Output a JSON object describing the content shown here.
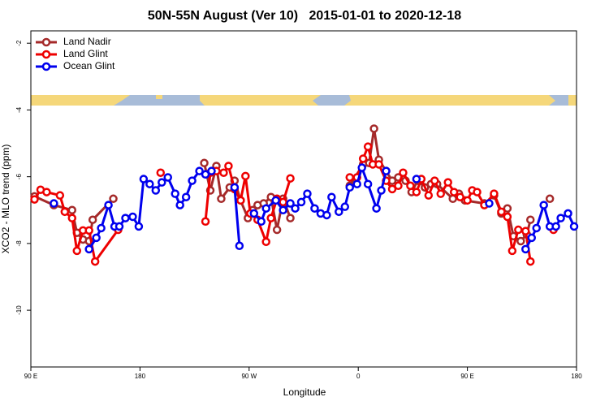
{
  "chart_data": {
    "type": "line",
    "title": "50N-55N August (Ver 10)   2015-01-01 to 2020-12-18",
    "x_label": "Longitude",
    "y_label": "XCO2 - MLO trend (ppm)",
    "xlim": [
      90,
      540
    ],
    "ylim": [
      -11.7,
      -1.63
    ],
    "xticks": [
      {
        "value": 90,
        "label": "90 E"
      },
      180,
      {
        "value": 270,
        "label": "90 W"
      },
      {
        "value": 360,
        "label": "0"
      },
      {
        "value": 450,
        "label": "90 E"
      },
      {
        "value": 540,
        "label": "180"
      }
    ],
    "yticks": [
      -2,
      -4,
      -6,
      -8,
      -10
    ],
    "legend": "upper left",
    "series": [
      {
        "name": "Land Nadir",
        "color": "#a52a2a",
        "x": [
          93,
          109,
          124,
          128,
          133,
          138,
          141,
          158,
          null,
          233,
          238,
          243,
          247,
          254,
          258,
          263,
          269,
          273,
          277,
          282,
          288,
          293,
          298,
          304,
          null,
          353,
          364,
          369,
          373,
          377,
          383,
          388,
          393,
          399,
          404,
          409,
          415,
          420,
          425,
          438,
          443,
          448,
          464,
          472,
          478,
          483,
          488,
          494,
          499,
          502,
          null,
          518
        ],
        "values": [
          -6.59,
          -6.85,
          -7.0,
          -7.68,
          -7.88,
          -7.93,
          -7.29,
          -6.66,
          null,
          -5.59,
          -6.41,
          -5.68,
          -6.66,
          -6.32,
          -6.12,
          -6.71,
          -7.24,
          -7.0,
          -6.85,
          -6.8,
          -6.61,
          -7.59,
          -6.66,
          -7.24,
          null,
          -6.27,
          -5.63,
          -5.59,
          -4.56,
          -5.49,
          -5.83,
          -6.12,
          -6.02,
          -6.12,
          -6.46,
          -6.12,
          -6.32,
          -6.22,
          -6.22,
          -6.66,
          -6.51,
          -6.71,
          -6.8,
          -6.56,
          -7.1,
          -6.95,
          -7.78,
          -7.93,
          -7.73,
          -7.29,
          null,
          -6.66
        ]
      },
      {
        "name": "Land Glint",
        "color": "#ee0000",
        "x": [
          93,
          98,
          103,
          114,
          118,
          124,
          128,
          133,
          138,
          143,
          162,
          null,
          197,
          null,
          234,
          238,
          243,
          249,
          253,
          258,
          263,
          267,
          271,
          277,
          284,
          288,
          293,
          298,
          304,
          null,
          353,
          359,
          364,
          368,
          372,
          377,
          383,
          388,
          393,
          397,
          403,
          408,
          412,
          418,
          423,
          428,
          434,
          439,
          444,
          450,
          454,
          458,
          464,
          472,
          478,
          483,
          487,
          492,
          498,
          502,
          null,
          521
        ],
        "values": [
          -6.68,
          -6.39,
          -6.46,
          -6.56,
          -7.05,
          -7.24,
          -8.22,
          -7.61,
          -7.61,
          -8.54,
          -7.59,
          null,
          -5.88,
          null,
          -7.34,
          -5.88,
          -5.83,
          -5.88,
          -5.68,
          -6.37,
          -6.71,
          -5.98,
          -7.1,
          -7.29,
          -7.95,
          -7.24,
          -6.66,
          -6.76,
          -6.05,
          null,
          -6.02,
          -6.02,
          -5.46,
          -5.1,
          -5.63,
          -5.63,
          -6.12,
          -6.37,
          -6.27,
          -5.88,
          -6.27,
          -6.46,
          -6.07,
          -6.56,
          -6.12,
          -6.51,
          -6.17,
          -6.46,
          -6.61,
          -6.71,
          -6.41,
          -6.46,
          -6.85,
          -6.51,
          -7.05,
          -7.2,
          -8.22,
          -7.59,
          -7.63,
          -8.54,
          null,
          -7.59
        ]
      },
      {
        "name": "Ocean Glint",
        "color": "#0000ee",
        "x": [
          109,
          null,
          138,
          144,
          148,
          154,
          159,
          163,
          168,
          174,
          179,
          183,
          188,
          193,
          198,
          203,
          209,
          213,
          218,
          223,
          229,
          234,
          239,
          null,
          258,
          262,
          null,
          274,
          280,
          284,
          292,
          298,
          304,
          308,
          313,
          318,
          324,
          329,
          334,
          338,
          344,
          349,
          353,
          359,
          363,
          368,
          375,
          379,
          383,
          null,
          408,
          null,
          468,
          null,
          498,
          503,
          507,
          513,
          518,
          523,
          527,
          533,
          538
        ],
        "values": [
          -6.8,
          null,
          -8.17,
          -7.83,
          -7.54,
          -6.85,
          -7.49,
          -7.49,
          -7.24,
          -7.2,
          -7.49,
          -6.07,
          -6.22,
          -6.41,
          -6.17,
          -6.02,
          -6.51,
          -6.85,
          -6.61,
          -6.12,
          -5.83,
          -5.93,
          -5.83,
          null,
          -6.32,
          -8.07,
          null,
          -7.1,
          -7.34,
          -6.95,
          -6.71,
          -7.0,
          -6.8,
          -6.95,
          -6.76,
          -6.51,
          -6.95,
          -7.1,
          -7.15,
          -6.61,
          -7.05,
          -6.9,
          -6.32,
          -6.22,
          -5.73,
          -6.22,
          -6.95,
          -6.41,
          -5.83,
          null,
          -6.07,
          null,
          -6.8,
          null,
          -8.17,
          -7.83,
          -7.54,
          -6.85,
          -7.49,
          -7.49,
          -7.24,
          -7.1,
          -7.49
        ]
      }
    ]
  }
}
